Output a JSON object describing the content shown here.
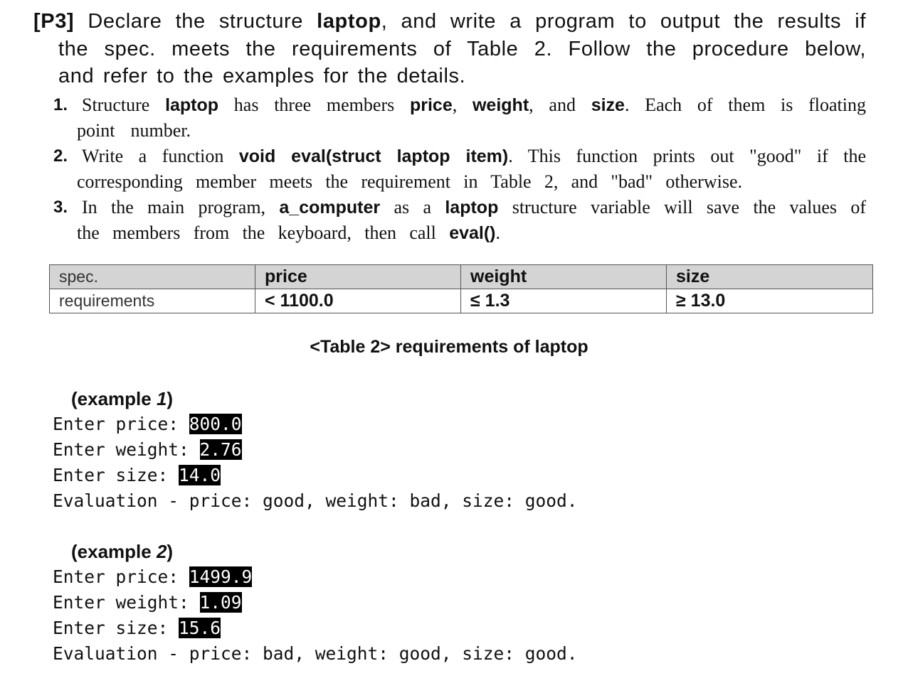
{
  "problem": {
    "heading_lines": [
      [
        {
          "t": "[P3]",
          "b": true
        },
        {
          "t": " Declare the structure "
        },
        {
          "t": "laptop",
          "b": true
        },
        {
          "t": ", and write a program to output the results if"
        }
      ],
      [
        {
          "t": "the spec. meets the requirements of Table 2. Follow the procedure below,"
        }
      ],
      [
        {
          "t": "and refer to the examples for the details."
        }
      ]
    ],
    "items": [
      {
        "number": "1.",
        "lines": [
          [
            {
              "t": "Structure "
            },
            {
              "t": "laptop",
              "b": true
            },
            {
              "t": " has three members "
            },
            {
              "t": "price",
              "b": true
            },
            {
              "t": ", "
            },
            {
              "t": "weight",
              "b": true
            },
            {
              "t": ", and "
            },
            {
              "t": "size",
              "b": true
            },
            {
              "t": ". Each of them is floating"
            }
          ],
          [
            {
              "t": "point number."
            }
          ]
        ]
      },
      {
        "number": "2.",
        "lines": [
          [
            {
              "t": "Write a function "
            },
            {
              "t": "void eval(struct laptop item)",
              "b": true
            },
            {
              "t": ". This function prints out \"good\" if the"
            }
          ],
          [
            {
              "t": "corresponding member meets the requirement in Table 2, and \"bad\" otherwise."
            }
          ]
        ]
      },
      {
        "number": "3.",
        "lines": [
          [
            {
              "t": "In the main program, "
            },
            {
              "t": "a_computer",
              "b": true
            },
            {
              "t": " as a "
            },
            {
              "t": "laptop",
              "b": true
            },
            {
              "t": " structure variable will save the values of"
            }
          ],
          [
            {
              "t": "the members from the keyboard, then call "
            },
            {
              "t": "eval()",
              "b": true
            },
            {
              "t": "."
            }
          ]
        ]
      }
    ]
  },
  "table": {
    "header": [
      "spec.",
      "price",
      "weight",
      "size"
    ],
    "row": [
      "requirements",
      "< 1100.0",
      "≤ 1.3",
      "≥ 13.0"
    ],
    "caption": "<Table 2> requirements of laptop"
  },
  "examples": [
    {
      "label_prefix": "(example ",
      "label_num": "1",
      "label_suffix": ")",
      "prompts": [
        {
          "p": "Enter price: ",
          "v": "800.0"
        },
        {
          "p": "Enter weight: ",
          "v": "2.76"
        },
        {
          "p": "Enter size: ",
          "v": "14.0"
        }
      ],
      "result": "Evaluation - price: good, weight: bad, size: good."
    },
    {
      "label_prefix": "(example ",
      "label_num": "2",
      "label_suffix": ")",
      "prompts": [
        {
          "p": "Enter price: ",
          "v": "1499.9"
        },
        {
          "p": "Enter weight: ",
          "v": "1.09"
        },
        {
          "p": "Enter size: ",
          "v": "15.6"
        }
      ],
      "result": "Evaluation - price: bad, weight: good, size: good."
    }
  ]
}
